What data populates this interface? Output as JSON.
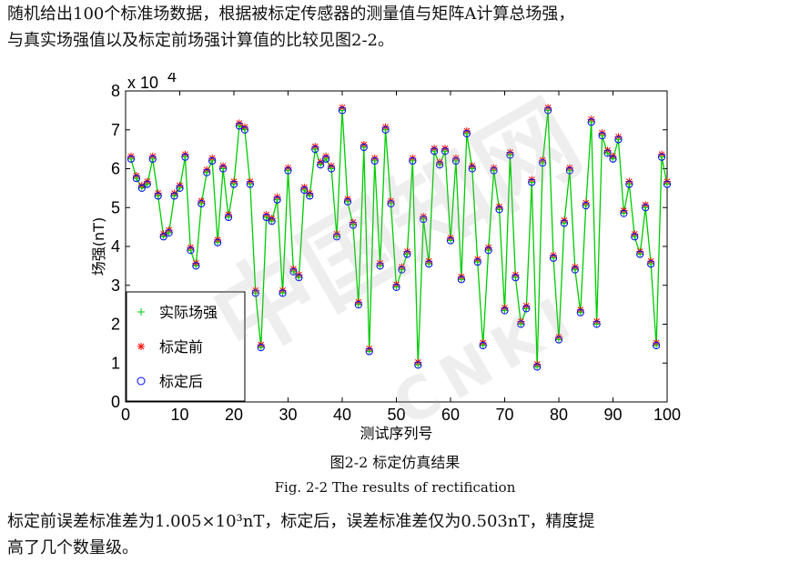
{
  "paragraph_top": {
    "line1": "随机给出100个标准场数据，根据被标定传感器的测量值与矩阵A计算总场强，",
    "line2": "与真实场强值以及标定前场强计算值的比较见图2-2。"
  },
  "figure": {
    "caption_cn": "图2-2  标定仿真结果",
    "caption_en": "Fig. 2-2 The results of rectification"
  },
  "watermark": {
    "text_cn": "中国知网",
    "text_en": "CNKI"
  },
  "paragraph_bottom": {
    "line1": "标定前误差标准差为1.005×10³nT，标定后，误差标准差仅为0.503nT，精度提",
    "line2": "高了几个数量级。"
  },
  "chart_data": {
    "type": "line",
    "xlabel": "测试序列号",
    "ylabel": "场强(nT)",
    "y_multiplier": "x 10",
    "y_multiplier_exp": "4",
    "xlim": [
      0,
      100
    ],
    "ylim": [
      0,
      8
    ],
    "xticks": [
      0,
      10,
      20,
      30,
      40,
      50,
      60,
      70,
      80,
      90,
      100
    ],
    "yticks": [
      0,
      1,
      2,
      3,
      4,
      5,
      6,
      7,
      8
    ],
    "grid": false,
    "legend_position": "bottom-left",
    "colors": {
      "actual": "#00cc00",
      "before": "#ff0000",
      "after": "#0000ff"
    },
    "series": [
      {
        "name": "实际场强",
        "marker": "+",
        "color": "#00cc00"
      },
      {
        "name": "标定前",
        "marker": "*",
        "color": "#ff0000"
      },
      {
        "name": "标定后",
        "marker": "o",
        "color": "#0000ff"
      }
    ],
    "x": [
      1,
      2,
      3,
      4,
      5,
      6,
      7,
      8,
      9,
      10,
      11,
      12,
      13,
      14,
      15,
      16,
      17,
      18,
      19,
      20,
      21,
      22,
      23,
      24,
      25,
      26,
      27,
      28,
      29,
      30,
      31,
      32,
      33,
      34,
      35,
      36,
      37,
      38,
      39,
      40,
      41,
      42,
      43,
      44,
      45,
      46,
      47,
      48,
      49,
      50,
      51,
      52,
      53,
      54,
      55,
      56,
      57,
      58,
      59,
      60,
      61,
      62,
      63,
      64,
      65,
      66,
      67,
      68,
      69,
      70,
      71,
      72,
      73,
      74,
      75,
      76,
      77,
      78,
      79,
      80,
      81,
      82,
      83,
      84,
      85,
      86,
      87,
      88,
      89,
      90,
      91,
      92,
      93,
      94,
      95,
      96,
      97,
      98,
      99,
      100
    ],
    "values": [
      6.25,
      5.75,
      5.5,
      5.6,
      6.25,
      5.3,
      4.25,
      4.35,
      5.3,
      5.5,
      6.3,
      3.9,
      3.5,
      5.1,
      5.9,
      6.2,
      4.1,
      6.0,
      4.75,
      5.6,
      7.1,
      7.0,
      5.6,
      2.8,
      1.4,
      4.75,
      4.65,
      5.2,
      2.8,
      5.95,
      3.35,
      3.2,
      5.45,
      5.3,
      6.5,
      6.1,
      6.25,
      6.0,
      4.25,
      7.5,
      5.15,
      4.55,
      2.5,
      6.55,
      1.3,
      6.2,
      3.5,
      7.0,
      5.1,
      2.95,
      3.4,
      3.8,
      6.2,
      0.95,
      4.7,
      3.55,
      6.45,
      6.1,
      6.45,
      4.15,
      6.2,
      3.15,
      6.9,
      6.0,
      3.6,
      1.45,
      3.9,
      5.95,
      4.95,
      2.35,
      6.35,
      3.2,
      2.0,
      2.4,
      5.65,
      0.9,
      6.15,
      7.5,
      3.7,
      1.6,
      4.6,
      5.95,
      3.4,
      2.3,
      5.05,
      7.2,
      2.0,
      6.85,
      6.4,
      6.25,
      6.75,
      4.85,
      5.6,
      4.25,
      3.8,
      5.0,
      3.55,
      1.45,
      6.3,
      5.6
    ],
    "before_offsets_visible": "slightly above actual values"
  }
}
